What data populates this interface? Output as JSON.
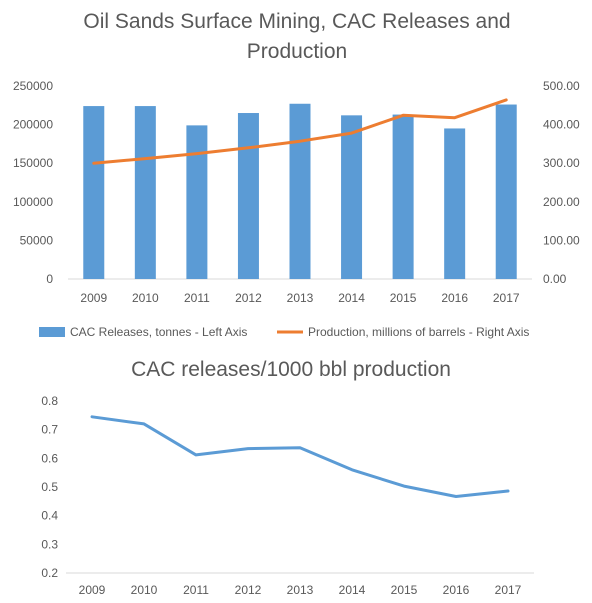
{
  "chart_data": [
    {
      "type": "bar",
      "title": "Oil Sands Surface Mining, CAC Releases and Production",
      "title_lines": [
        "Oil Sands Surface Mining, CAC Releases and",
        "Production"
      ],
      "categories": [
        "2009",
        "2010",
        "2011",
        "2012",
        "2013",
        "2014",
        "2015",
        "2016",
        "2017"
      ],
      "left_axis": {
        "ylim": [
          0,
          250000
        ],
        "ticks": [
          0,
          50000,
          100000,
          150000,
          200000,
          250000
        ],
        "tick_labels": [
          "0",
          "50000",
          "100000",
          "150000",
          "200000",
          "250000"
        ]
      },
      "right_axis": {
        "ylim": [
          0,
          500
        ],
        "ticks": [
          0,
          100,
          200,
          300,
          400,
          500
        ],
        "tick_labels": [
          "0.00",
          "100.00",
          "200.00",
          "300.00",
          "400.00",
          "500.00"
        ]
      },
      "series": [
        {
          "name": "CAC Releases, tonnes - Left Axis",
          "type": "bar",
          "axis": "left",
          "color": "#5b9bd5",
          "values": [
            224000,
            224000,
            199000,
            215000,
            227000,
            212000,
            213000,
            195000,
            226000
          ]
        },
        {
          "name": "Production, millions of barrels - Right Axis",
          "type": "line",
          "axis": "right",
          "color": "#ed7d31",
          "values": [
            300,
            312,
            325,
            340,
            357,
            378,
            424,
            418,
            464
          ]
        }
      ],
      "legend_position": "bottom",
      "grid": false
    },
    {
      "type": "line",
      "title": "CAC releases/1000 bbl production",
      "categories": [
        "2009",
        "2010",
        "2011",
        "2012",
        "2013",
        "2014",
        "2015",
        "2016",
        "2017"
      ],
      "ylim": [
        0.2,
        0.8
      ],
      "ticks": [
        0.2,
        0.3,
        0.4,
        0.5,
        0.6,
        0.7,
        0.8
      ],
      "tick_labels": [
        "0.2",
        "0.3",
        "0.4",
        "0.5",
        "0.6",
        "0.7",
        "0.8"
      ],
      "series": [
        {
          "color": "#5b9bd5",
          "values": [
            0.745,
            0.72,
            0.612,
            0.634,
            0.637,
            0.56,
            0.503,
            0.467,
            0.486
          ]
        }
      ],
      "grid": false
    }
  ]
}
